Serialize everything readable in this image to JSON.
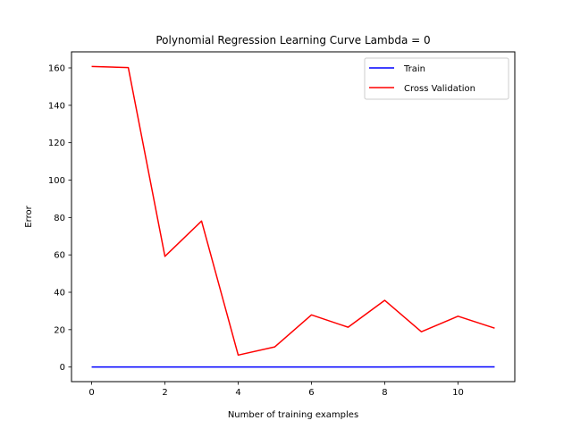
{
  "chart_data": {
    "type": "line",
    "title": "Polynomial Regression Learning Curve Lambda = 0",
    "xlabel": "Number of training examples",
    "ylabel": "Error",
    "xlim": [
      -0.55,
      11.55
    ],
    "ylim": [
      -7.8,
      168.6
    ],
    "xticks": [
      0,
      2,
      4,
      6,
      8,
      10
    ],
    "yticks": [
      0,
      20,
      40,
      60,
      80,
      100,
      120,
      140,
      160
    ],
    "grid": false,
    "legend_position": "top-right",
    "x": [
      0,
      1,
      2,
      3,
      4,
      5,
      6,
      7,
      8,
      9,
      10,
      11
    ],
    "series": [
      {
        "name": "Train",
        "color": "#0000ff",
        "values": [
          0,
          0,
          0,
          0,
          0,
          0,
          0,
          0,
          0,
          0.1,
          0.1,
          0.1
        ]
      },
      {
        "name": "Cross Validation",
        "color": "#ff0000",
        "values": [
          160.8,
          160.2,
          59.2,
          78.1,
          6.4,
          10.8,
          27.9,
          21.3,
          35.7,
          18.9,
          27.2,
          20.8
        ]
      }
    ]
  }
}
